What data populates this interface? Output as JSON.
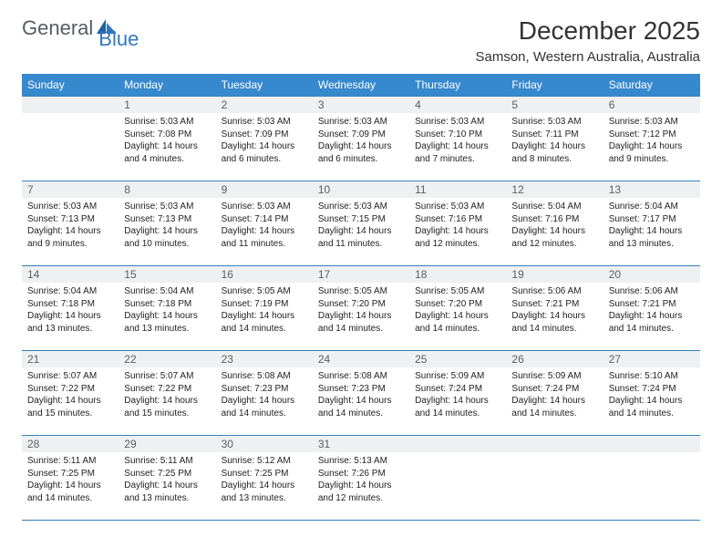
{
  "logo": {
    "text1": "General",
    "text2": "Blue"
  },
  "title": "December 2025",
  "location": "Samson, Western Australia, Australia",
  "columns": [
    "Sunday",
    "Monday",
    "Tuesday",
    "Wednesday",
    "Thursday",
    "Friday",
    "Saturday"
  ],
  "colors": {
    "header_bg": "#3789ce",
    "header_fg": "#ffffff",
    "row_border": "#3680bf",
    "daynum_bg": "#eef0f1",
    "logo_gray": "#555c63",
    "logo_blue": "#2f78bd"
  },
  "weeks": [
    [
      null,
      {
        "n": "1",
        "sunrise": "5:03 AM",
        "sunset": "7:08 PM",
        "daylight": "14 hours and 4 minutes."
      },
      {
        "n": "2",
        "sunrise": "5:03 AM",
        "sunset": "7:09 PM",
        "daylight": "14 hours and 6 minutes."
      },
      {
        "n": "3",
        "sunrise": "5:03 AM",
        "sunset": "7:09 PM",
        "daylight": "14 hours and 6 minutes."
      },
      {
        "n": "4",
        "sunrise": "5:03 AM",
        "sunset": "7:10 PM",
        "daylight": "14 hours and 7 minutes."
      },
      {
        "n": "5",
        "sunrise": "5:03 AM",
        "sunset": "7:11 PM",
        "daylight": "14 hours and 8 minutes."
      },
      {
        "n": "6",
        "sunrise": "5:03 AM",
        "sunset": "7:12 PM",
        "daylight": "14 hours and 9 minutes."
      }
    ],
    [
      {
        "n": "7",
        "sunrise": "5:03 AM",
        "sunset": "7:13 PM",
        "daylight": "14 hours and 9 minutes."
      },
      {
        "n": "8",
        "sunrise": "5:03 AM",
        "sunset": "7:13 PM",
        "daylight": "14 hours and 10 minutes."
      },
      {
        "n": "9",
        "sunrise": "5:03 AM",
        "sunset": "7:14 PM",
        "daylight": "14 hours and 11 minutes."
      },
      {
        "n": "10",
        "sunrise": "5:03 AM",
        "sunset": "7:15 PM",
        "daylight": "14 hours and 11 minutes."
      },
      {
        "n": "11",
        "sunrise": "5:03 AM",
        "sunset": "7:16 PM",
        "daylight": "14 hours and 12 minutes."
      },
      {
        "n": "12",
        "sunrise": "5:04 AM",
        "sunset": "7:16 PM",
        "daylight": "14 hours and 12 minutes."
      },
      {
        "n": "13",
        "sunrise": "5:04 AM",
        "sunset": "7:17 PM",
        "daylight": "14 hours and 13 minutes."
      }
    ],
    [
      {
        "n": "14",
        "sunrise": "5:04 AM",
        "sunset": "7:18 PM",
        "daylight": "14 hours and 13 minutes."
      },
      {
        "n": "15",
        "sunrise": "5:04 AM",
        "sunset": "7:18 PM",
        "daylight": "14 hours and 13 minutes."
      },
      {
        "n": "16",
        "sunrise": "5:05 AM",
        "sunset": "7:19 PM",
        "daylight": "14 hours and 14 minutes."
      },
      {
        "n": "17",
        "sunrise": "5:05 AM",
        "sunset": "7:20 PM",
        "daylight": "14 hours and 14 minutes."
      },
      {
        "n": "18",
        "sunrise": "5:05 AM",
        "sunset": "7:20 PM",
        "daylight": "14 hours and 14 minutes."
      },
      {
        "n": "19",
        "sunrise": "5:06 AM",
        "sunset": "7:21 PM",
        "daylight": "14 hours and 14 minutes."
      },
      {
        "n": "20",
        "sunrise": "5:06 AM",
        "sunset": "7:21 PM",
        "daylight": "14 hours and 14 minutes."
      }
    ],
    [
      {
        "n": "21",
        "sunrise": "5:07 AM",
        "sunset": "7:22 PM",
        "daylight": "14 hours and 15 minutes."
      },
      {
        "n": "22",
        "sunrise": "5:07 AM",
        "sunset": "7:22 PM",
        "daylight": "14 hours and 15 minutes."
      },
      {
        "n": "23",
        "sunrise": "5:08 AM",
        "sunset": "7:23 PM",
        "daylight": "14 hours and 14 minutes."
      },
      {
        "n": "24",
        "sunrise": "5:08 AM",
        "sunset": "7:23 PM",
        "daylight": "14 hours and 14 minutes."
      },
      {
        "n": "25",
        "sunrise": "5:09 AM",
        "sunset": "7:24 PM",
        "daylight": "14 hours and 14 minutes."
      },
      {
        "n": "26",
        "sunrise": "5:09 AM",
        "sunset": "7:24 PM",
        "daylight": "14 hours and 14 minutes."
      },
      {
        "n": "27",
        "sunrise": "5:10 AM",
        "sunset": "7:24 PM",
        "daylight": "14 hours and 14 minutes."
      }
    ],
    [
      {
        "n": "28",
        "sunrise": "5:11 AM",
        "sunset": "7:25 PM",
        "daylight": "14 hours and 14 minutes."
      },
      {
        "n": "29",
        "sunrise": "5:11 AM",
        "sunset": "7:25 PM",
        "daylight": "14 hours and 13 minutes."
      },
      {
        "n": "30",
        "sunrise": "5:12 AM",
        "sunset": "7:25 PM",
        "daylight": "14 hours and 13 minutes."
      },
      {
        "n": "31",
        "sunrise": "5:13 AM",
        "sunset": "7:26 PM",
        "daylight": "14 hours and 12 minutes."
      },
      null,
      null,
      null
    ]
  ]
}
